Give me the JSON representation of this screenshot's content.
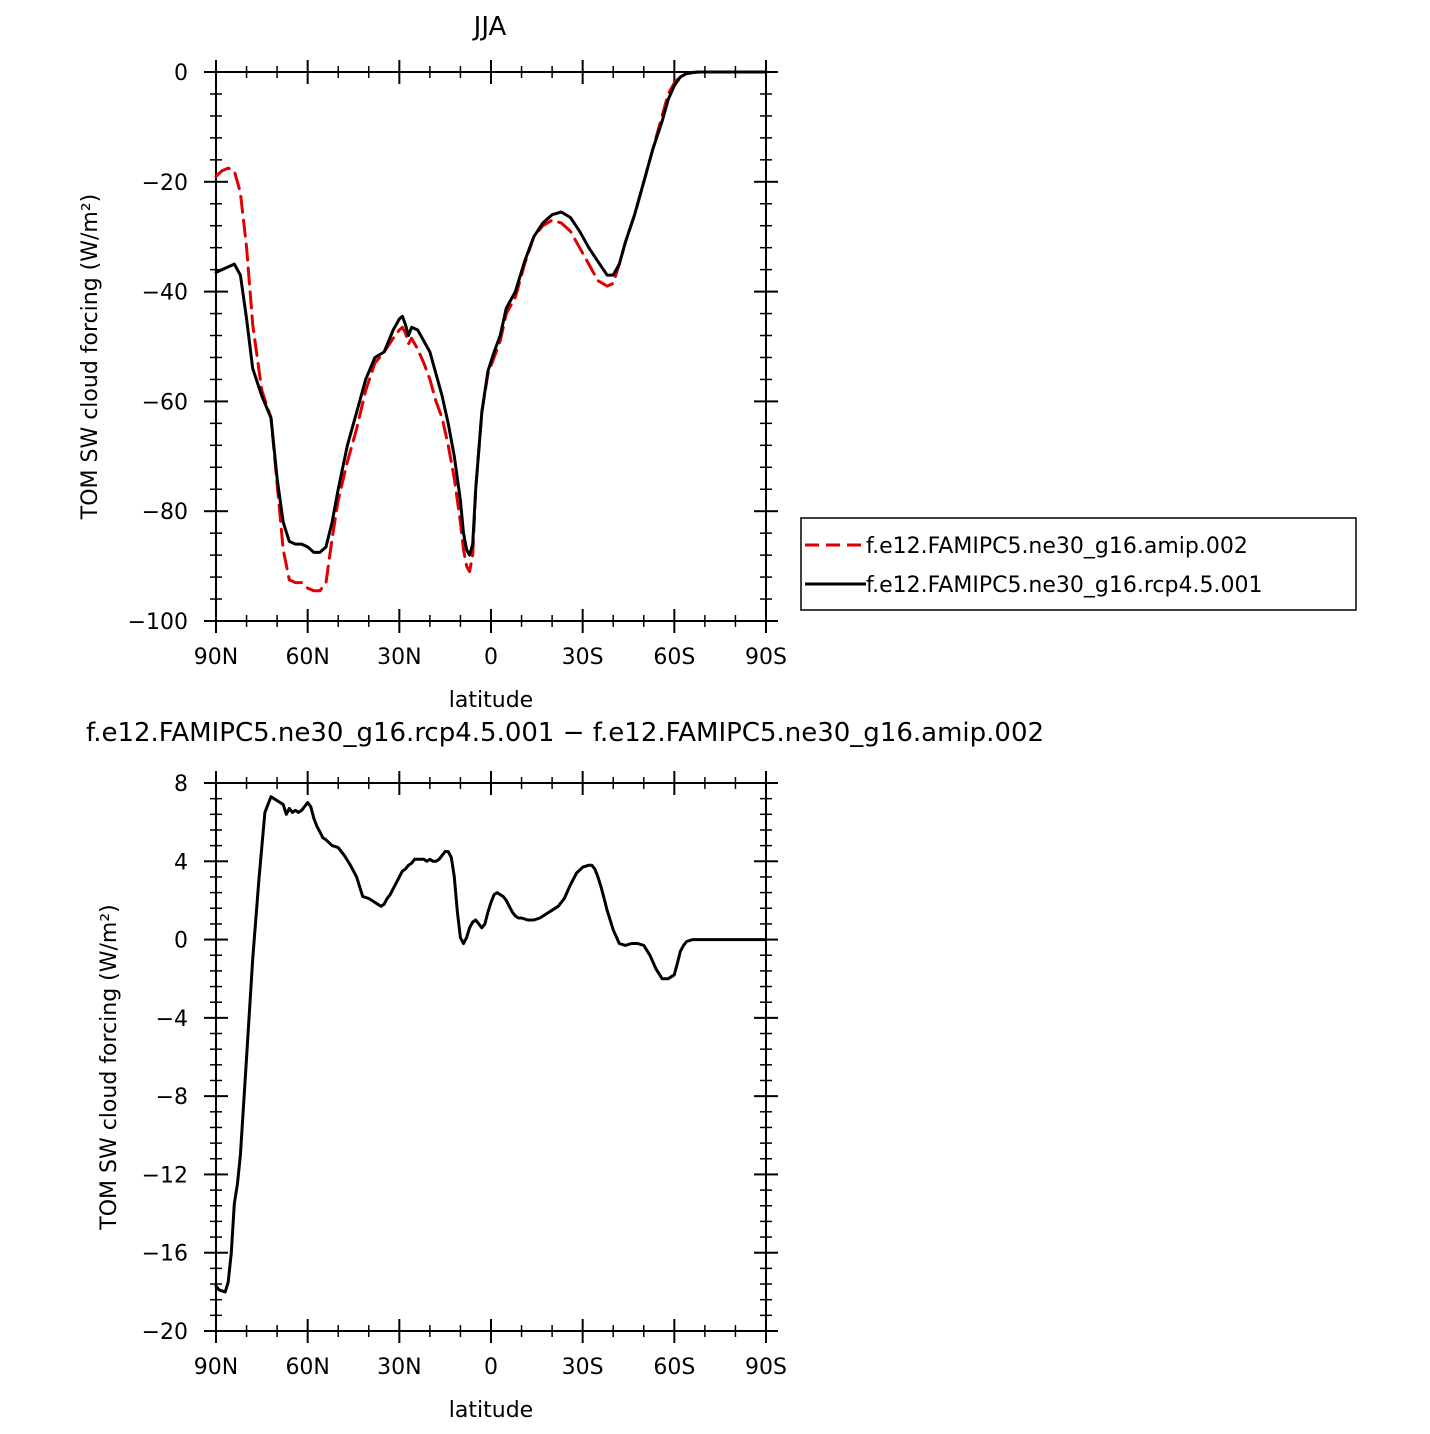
{
  "chart_data": [
    {
      "type": "line",
      "title": "JJA",
      "xlabel": "latitude",
      "ylabel": "TOM SW cloud forcing (W/m²)",
      "xlim": [
        90,
        -90
      ],
      "ylim": [
        -100,
        0
      ],
      "xtick_values": [
        90,
        60,
        30,
        0,
        -30,
        -60,
        -90
      ],
      "xtick_labels": [
        "90N",
        "60N",
        "30N",
        "0",
        "30S",
        "60S",
        "90S"
      ],
      "ytick_values": [
        -100,
        -80,
        -60,
        -40,
        -20,
        0
      ],
      "ytick_labels": [
        "−100",
        "−80",
        "−60",
        "−40",
        "−20",
        "0"
      ],
      "legend_position": "right",
      "series": [
        {
          "name": "f.e12.FAMIPC5.ne30_g16.amip.002",
          "color": "#e00000",
          "dash": "dashed",
          "x": [
            90,
            88,
            86,
            84,
            82,
            80,
            78,
            75,
            72,
            70,
            68,
            66,
            64,
            62,
            60,
            58,
            56,
            54,
            52,
            50,
            47,
            44,
            41,
            38,
            35,
            32,
            30,
            29,
            28,
            27,
            26,
            24,
            22,
            20,
            18,
            16,
            14,
            12,
            10,
            9,
            8,
            7,
            6,
            5,
            3,
            1,
            -1,
            -3,
            -5,
            -8,
            -11,
            -14,
            -17,
            -20,
            -23,
            -26,
            -29,
            -32,
            -35,
            -38,
            -40,
            -42,
            -44,
            -47,
            -50,
            -53,
            -56,
            -58,
            -60,
            -62,
            -64,
            -66,
            -68,
            -70,
            -75,
            -80,
            -90
          ],
          "y": [
            -19,
            -18,
            -17.5,
            -18,
            -22,
            -32,
            -46,
            -58,
            -63,
            -75,
            -87,
            -92.5,
            -93,
            -93,
            -94,
            -94.5,
            -94.5,
            -93,
            -85,
            -78,
            -71,
            -65,
            -58,
            -53,
            -51,
            -48.5,
            -47,
            -46.5,
            -47.5,
            -49.5,
            -48.5,
            -50.5,
            -53,
            -56,
            -60,
            -63,
            -68,
            -74,
            -82,
            -87,
            -90,
            -91,
            -88,
            -76,
            -62,
            -55,
            -52,
            -49,
            -44,
            -41,
            -35,
            -30,
            -28,
            -27,
            -27.5,
            -29,
            -32,
            -35,
            -38,
            -39,
            -38.5,
            -35,
            -31,
            -26,
            -20,
            -14,
            -8,
            -4,
            -2,
            -0.8,
            -0.3,
            -0.1,
            0,
            0,
            0,
            0,
            0
          ]
        },
        {
          "name": "f.e12.FAMIPC5.ne30_g16.rcp4.5.001",
          "color": "#000000",
          "dash": "solid",
          "x": [
            90,
            88,
            86,
            84,
            82,
            80,
            78,
            75,
            72,
            70,
            68,
            66,
            64,
            62,
            60,
            58,
            56,
            54,
            52,
            50,
            47,
            44,
            41,
            38,
            35,
            32,
            30,
            29,
            28,
            27,
            26,
            24,
            22,
            20,
            18,
            16,
            14,
            12,
            10,
            9,
            8,
            7,
            6,
            5,
            3,
            1,
            -1,
            -3,
            -5,
            -8,
            -11,
            -14,
            -17,
            -20,
            -23,
            -26,
            -29,
            -32,
            -35,
            -38,
            -40,
            -42,
            -44,
            -47,
            -50,
            -53,
            -56,
            -58,
            -60,
            -62,
            -64,
            -66,
            -68,
            -70,
            -75,
            -80,
            -90
          ],
          "y": [
            -36.5,
            -36,
            -35.5,
            -35,
            -37,
            -45,
            -54,
            -59,
            -63,
            -74,
            -82,
            -85.5,
            -86,
            -86,
            -86.5,
            -87.5,
            -87.5,
            -86.5,
            -82,
            -76,
            -68,
            -62,
            -56,
            -52,
            -51,
            -47,
            -45,
            -44.5,
            -46,
            -48,
            -46.5,
            -47,
            -49,
            -51,
            -55,
            -59,
            -64,
            -70,
            -78,
            -84,
            -87,
            -88,
            -86,
            -76,
            -62,
            -54.5,
            -51,
            -48,
            -43,
            -40,
            -34.5,
            -30,
            -27.5,
            -26,
            -25.5,
            -26.5,
            -29,
            -32,
            -34.5,
            -37,
            -37,
            -35,
            -31,
            -26,
            -20,
            -14,
            -9,
            -5,
            -2.5,
            -0.9,
            -0.3,
            -0.1,
            0,
            0,
            0,
            0,
            0
          ]
        }
      ]
    },
    {
      "type": "line",
      "title": "f.e12.FAMIPC5.ne30_g16.rcp4.5.001 − f.e12.FAMIPC5.ne30_g16.amip.002",
      "xlabel": "latitude",
      "ylabel": "TOM SW cloud forcing (W/m²)",
      "xlim": [
        90,
        -90
      ],
      "ylim": [
        -20,
        8
      ],
      "xtick_values": [
        90,
        60,
        30,
        0,
        -30,
        -60,
        -90
      ],
      "xtick_labels": [
        "90N",
        "60N",
        "30N",
        "0",
        "30S",
        "60S",
        "90S"
      ],
      "ytick_values": [
        -20,
        -16,
        -12,
        -8,
        -4,
        0,
        4,
        8
      ],
      "ytick_labels": [
        "−20",
        "−16",
        "−12",
        "−8",
        "−4",
        "0",
        "4",
        "8"
      ],
      "series": [
        {
          "color": "#000000",
          "dash": "solid",
          "x": [
            90,
            89,
            87,
            86,
            85,
            84,
            83,
            82,
            80,
            78,
            76,
            74,
            72,
            70,
            68,
            67,
            66,
            65,
            64,
            63,
            62,
            61,
            60,
            59,
            58,
            57,
            56,
            55,
            54,
            52,
            50,
            48,
            46,
            44,
            42,
            40,
            39,
            38,
            37,
            36,
            35,
            34,
            33,
            32,
            31,
            30,
            29,
            28,
            27,
            26,
            25,
            24,
            23,
            22,
            21,
            20,
            19,
            18,
            17,
            16,
            15,
            14,
            13,
            12,
            11,
            10,
            9,
            8,
            7,
            6,
            5,
            4,
            3,
            2,
            1,
            0,
            -1,
            -2,
            -3,
            -4,
            -5,
            -6,
            -7,
            -8,
            -9,
            -10,
            -12,
            -14,
            -16,
            -18,
            -20,
            -22,
            -24,
            -26,
            -28,
            -30,
            -32,
            -33,
            -34,
            -35,
            -36,
            -37,
            -38,
            -40,
            -42,
            -44,
            -46,
            -48,
            -50,
            -52,
            -54,
            -56,
            -58,
            -60,
            -61,
            -62,
            -63,
            -64,
            -66,
            -68,
            -70,
            -75,
            -80,
            -90
          ],
          "y": [
            -17.7,
            -17.9,
            -18,
            -17.5,
            -16,
            -13.5,
            -12.5,
            -11,
            -6,
            -1,
            3,
            6.5,
            7.3,
            7.1,
            6.9,
            6.4,
            6.7,
            6.5,
            6.6,
            6.5,
            6.6,
            6.8,
            7,
            6.8,
            6.2,
            5.8,
            5.5,
            5.2,
            5.1,
            4.8,
            4.7,
            4.3,
            3.8,
            3.2,
            2.2,
            2.1,
            2,
            1.9,
            1.8,
            1.7,
            1.8,
            2.1,
            2.3,
            2.6,
            2.9,
            3.2,
            3.5,
            3.6,
            3.8,
            3.9,
            4.1,
            4.1,
            4.1,
            4.1,
            4.0,
            4.1,
            4.0,
            4.0,
            4.1,
            4.3,
            4.5,
            4.5,
            4.2,
            3.2,
            1.4,
            0.1,
            -0.2,
            0.1,
            0.6,
            0.9,
            1.0,
            0.8,
            0.6,
            0.8,
            1.4,
            1.9,
            2.3,
            2.4,
            2.3,
            2.2,
            2.0,
            1.7,
            1.4,
            1.2,
            1.1,
            1.1,
            1.0,
            1.0,
            1.1,
            1.3,
            1.5,
            1.7,
            2.1,
            2.8,
            3.4,
            3.7,
            3.8,
            3.8,
            3.6,
            3.2,
            2.7,
            2.1,
            1.5,
            0.5,
            -0.2,
            -0.3,
            -0.2,
            -0.2,
            -0.3,
            -0.8,
            -1.5,
            -2.0,
            -2.0,
            -1.8,
            -1.2,
            -0.6,
            -0.3,
            -0.1,
            0,
            0,
            0,
            0,
            0,
            0
          ]
        }
      ]
    }
  ],
  "legend": {
    "entries": [
      "f.e12.FAMIPC5.ne30_g16.amip.002",
      "f.e12.FAMIPC5.ne30_g16.rcp4.5.001"
    ]
  }
}
